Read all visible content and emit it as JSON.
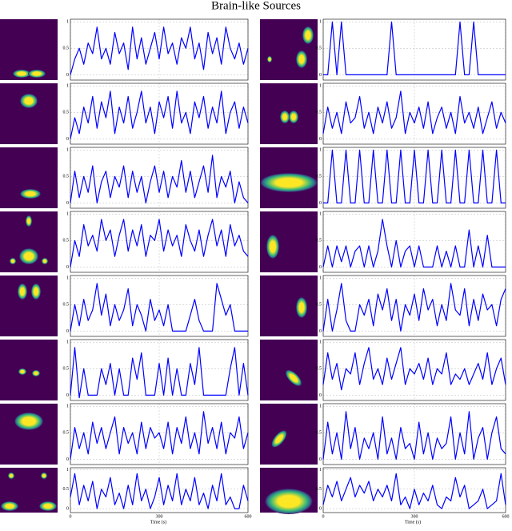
{
  "chart_data": {
    "type": "line",
    "title": "Brain-like Sources",
    "xlabel": "Time (s)",
    "xlim": [
      0,
      600
    ],
    "xticks": [
      0,
      300,
      600
    ],
    "ylim": [
      -0.1,
      1.05
    ],
    "yticks": [
      0,
      0.5,
      1
    ],
    "grid": true,
    "x": [
      0,
      15,
      30,
      45,
      60,
      75,
      90,
      105,
      120,
      135,
      150,
      165,
      180,
      195,
      210,
      225,
      240,
      255,
      270,
      285,
      300,
      315,
      330,
      345,
      360,
      375,
      390,
      405,
      420,
      435,
      450,
      465,
      480,
      495,
      510,
      525,
      540,
      555,
      570,
      585,
      600
    ],
    "series": [
      {
        "color": "#0000ff",
        "values": [
          0,
          0.3,
          0.5,
          0.2,
          0.6,
          0.4,
          0.9,
          0.3,
          0.5,
          0.2,
          0.8,
          0.4,
          0.6,
          0.1,
          0.9,
          0.3,
          0.7,
          0.2,
          0.5,
          0.8,
          0.3,
          0.9,
          0.4,
          0.6,
          0.2,
          0.7,
          0.5,
          0.9,
          0.3,
          0.6,
          0.1,
          0.8,
          0.4,
          0.7,
          0.2,
          0.9,
          0.5,
          0.3,
          0.6,
          0.2,
          0.5
        ]
      },
      {
        "color": "#0000ff",
        "values": [
          0,
          0.4,
          0.1,
          0.6,
          0.3,
          0.8,
          0.2,
          0.7,
          0.4,
          0.9,
          0.1,
          0.6,
          0.3,
          0.8,
          0.2,
          0.5,
          0.9,
          0.3,
          0.6,
          0.1,
          0.7,
          0.4,
          0.8,
          0.2,
          0.9,
          0.3,
          0.5,
          0.1,
          0.7,
          0.4,
          0.8,
          0.2,
          0.6,
          0.3,
          0.9,
          0.1,
          0.5,
          0.7,
          0.2,
          0.6,
          0.3
        ]
      },
      {
        "color": "#0000ff",
        "values": [
          0,
          0.6,
          0.1,
          0.5,
          0.2,
          0.7,
          0,
          0.4,
          0.6,
          0.1,
          0.5,
          0.3,
          0.7,
          0.1,
          0.6,
          0.2,
          0.5,
          0,
          0.4,
          0.7,
          0.2,
          0.6,
          0.1,
          0.5,
          0.3,
          0.8,
          0.2,
          0.6,
          0.1,
          0.4,
          0.7,
          0.2,
          0.9,
          0.1,
          0.5,
          0.3,
          0.6,
          0,
          0.4,
          0.1,
          0
        ]
      },
      {
        "color": "#0000ff",
        "values": [
          0,
          0.5,
          0.2,
          0.8,
          0.4,
          0.6,
          0.3,
          0.9,
          0.5,
          0.7,
          0.2,
          0.6,
          0.9,
          0.3,
          0.7,
          0.4,
          0.8,
          0.2,
          0.6,
          0.5,
          0.9,
          0.3,
          0.7,
          0.4,
          0.6,
          0.2,
          0.8,
          0.5,
          0.3,
          0.7,
          0.2,
          0.6,
          0.9,
          0.4,
          0.7,
          0.2,
          0.8,
          0.4,
          0.6,
          0.3,
          0.2
        ]
      },
      {
        "color": "#0000ff",
        "values": [
          0,
          0.5,
          0.1,
          0.6,
          0.2,
          0.4,
          0.9,
          0.3,
          0.7,
          0.1,
          0.5,
          0.2,
          0.4,
          0.8,
          0.1,
          0.5,
          0.3,
          0,
          0.6,
          0.2,
          0.4,
          0.1,
          0.5,
          0,
          0,
          0,
          0,
          0.3,
          0.6,
          0.2,
          0,
          0,
          0,
          0.9,
          0.6,
          0.3,
          0.5,
          0,
          0,
          0,
          0
        ]
      },
      {
        "color": "#0000ff",
        "values": [
          0,
          0.9,
          -0.05,
          0.5,
          0,
          0,
          0,
          0.5,
          0.2,
          0.6,
          0,
          0.5,
          0,
          0,
          0.7,
          0.3,
          0.8,
          0,
          0,
          0,
          0.6,
          0,
          0.7,
          0,
          0.5,
          0,
          0,
          0.6,
          0.2,
          0.9,
          0,
          0,
          0,
          0,
          0,
          0,
          0.5,
          0.9,
          0,
          0.6,
          0
        ]
      },
      {
        "color": "#0000ff",
        "values": [
          0,
          0.6,
          0.2,
          0.5,
          0.1,
          0.7,
          0.3,
          0.6,
          0.2,
          0.5,
          0.8,
          0.1,
          0.6,
          0.3,
          0.5,
          0.1,
          0.7,
          0.2,
          0.6,
          0.4,
          0.5,
          0.2,
          0.7,
          0.1,
          0.6,
          0.3,
          0.8,
          0.2,
          0.5,
          0.1,
          0.9,
          0.3,
          0.6,
          0.2,
          0.7,
          0.1,
          0.5,
          0.4,
          0.8,
          0.2,
          0.5
        ]
      },
      {
        "color": "#0000ff",
        "values": [
          0.3,
          0.9,
          0.1,
          0.6,
          0.2,
          0.7,
          0,
          0.5,
          0.3,
          0.8,
          0.1,
          0.4,
          0,
          0.6,
          0.1,
          0.9,
          0.2,
          0.5,
          0,
          0.3,
          0.8,
          0.1,
          0.6,
          0.2,
          0.9,
          0.1,
          0.5,
          0.2,
          0.8,
          0.1,
          0.4,
          0,
          0.6,
          0.2,
          0.9,
          0.1,
          0.3,
          0,
          0,
          0.6,
          0.2
        ]
      },
      {
        "color": "#0000ff",
        "values": [
          0,
          0,
          1,
          0,
          1,
          0,
          0,
          0,
          0,
          0,
          0,
          0,
          0,
          0,
          0,
          1,
          0,
          0,
          0,
          0,
          0,
          0,
          0,
          0,
          0,
          0,
          0,
          0,
          0,
          0,
          1,
          0,
          0,
          1,
          0,
          0,
          0,
          0,
          0,
          0,
          0
        ]
      },
      {
        "color": "#0000ff",
        "values": [
          0.1,
          0.6,
          0.2,
          0.5,
          0.1,
          0.7,
          0.3,
          0.4,
          0.8,
          0.2,
          0.5,
          0.1,
          0.6,
          0.3,
          0.7,
          0.2,
          0.4,
          0.9,
          0.1,
          0.5,
          0.3,
          0.6,
          0.2,
          0.7,
          0.1,
          0.4,
          0.6,
          0.2,
          0.5,
          0.1,
          0.8,
          0.3,
          0.5,
          0.2,
          0.6,
          0.1,
          0.4,
          0.7,
          0.2,
          0.5,
          0.3
        ]
      },
      {
        "color": "#0000ff",
        "values": [
          0,
          0,
          1,
          0,
          0,
          1,
          0,
          0,
          1,
          0,
          0,
          1,
          0,
          0,
          1,
          0,
          0,
          1,
          0,
          0,
          1,
          0,
          0,
          1,
          0,
          0,
          1,
          0,
          0,
          1,
          0,
          0,
          1,
          0,
          0,
          1,
          0,
          0,
          1,
          0,
          0
        ]
      },
      {
        "color": "#0000ff",
        "values": [
          0,
          0.4,
          0,
          0.4,
          0.1,
          0.4,
          0,
          0.3,
          0.4,
          0,
          0.4,
          0,
          0.3,
          0.9,
          0.4,
          0,
          0.5,
          0,
          0.3,
          0.4,
          0,
          0.4,
          0,
          0,
          0,
          0.4,
          0,
          0.3,
          0,
          0.4,
          0,
          0,
          0.7,
          0,
          0.4,
          0,
          0.6,
          0,
          0,
          0,
          0
        ]
      },
      {
        "color": "#0000ff",
        "values": [
          0,
          0.6,
          0,
          0.4,
          0.9,
          0.2,
          0,
          0,
          0.5,
          0.3,
          0.6,
          0.1,
          0.7,
          0.4,
          0.8,
          0.2,
          0.6,
          0,
          0.5,
          0.3,
          0.7,
          0.2,
          0.8,
          0.4,
          0.6,
          0.1,
          0.5,
          0.2,
          0.9,
          0.4,
          0.3,
          0.8,
          0.1,
          0.6,
          0.2,
          0.7,
          0.4,
          0.5,
          0.1,
          0.6,
          0.8
        ]
      },
      {
        "color": "#0000ff",
        "values": [
          0.2,
          0.8,
          0.3,
          0.6,
          0.1,
          0.5,
          0.4,
          0.8,
          0.2,
          0.6,
          0.9,
          0.3,
          0.5,
          0.2,
          0.7,
          0.3,
          0.6,
          0.9,
          0.2,
          0.5,
          0.4,
          0.6,
          0.3,
          0.7,
          0.2,
          0.5,
          0.4,
          0.8,
          0.2,
          0.4,
          0.3,
          0.5,
          0.2,
          0.4,
          0.6,
          0.3,
          0.8,
          0.2,
          0.5,
          0.7,
          0.2
        ]
      },
      {
        "color": "#0000ff",
        "values": [
          0,
          0.7,
          0.1,
          0.5,
          0,
          0.9,
          0.2,
          0.6,
          0,
          0.4,
          0.2,
          0.5,
          0,
          0.8,
          0.1,
          0.4,
          0,
          0.6,
          0.2,
          0.3,
          0,
          0.7,
          0.1,
          0.5,
          0,
          0.4,
          0.2,
          0.3,
          0.8,
          0,
          0.5,
          0.1,
          0.9,
          0,
          0.4,
          0.6,
          0,
          0.5,
          0.8,
          0.2,
          0.1
        ]
      },
      {
        "color": "#0000ff",
        "values": [
          0.1,
          0.6,
          0.3,
          0.7,
          0.2,
          0.5,
          0.8,
          0.3,
          0.6,
          0.4,
          0.7,
          0.2,
          0.5,
          0.3,
          0.6,
          0.2,
          0.9,
          0.1,
          0.3,
          0,
          0.5,
          0.1,
          0.4,
          0.2,
          0.6,
          0.1,
          0,
          0.3,
          0.2,
          0.8,
          0.3,
          0.6,
          0,
          0.1,
          0.2,
          0.5,
          0,
          0.1,
          0.2,
          0.9,
          0.1
        ]
      }
    ]
  }
}
